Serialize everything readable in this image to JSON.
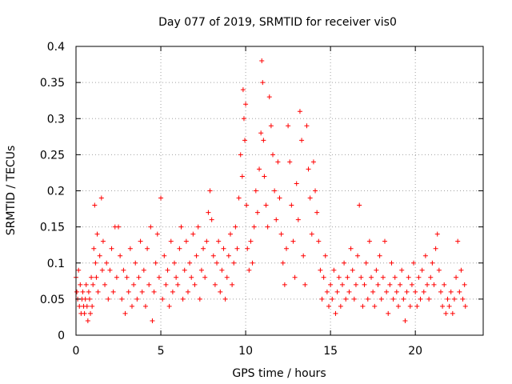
{
  "chart_data": {
    "type": "scatter",
    "title": "Day 077 of 2019, SRMTID for receiver vis0",
    "xlabel": "GPS time / hours",
    "ylabel": "SRMTID / TECUs",
    "xlim": [
      0,
      24
    ],
    "ylim": [
      0,
      0.4
    ],
    "xticks": [
      0,
      5,
      10,
      15,
      20
    ],
    "xtick_labels": [
      "0",
      "5",
      "10",
      "15",
      "20"
    ],
    "yticks": [
      0,
      0.05,
      0.1,
      0.15,
      0.2,
      0.25,
      0.3,
      0.35,
      0.4
    ],
    "ytick_labels": [
      "0",
      "0.05",
      "0.1",
      "0.15",
      "0.2",
      "0.25",
      "0.3",
      "0.35",
      "0.4"
    ],
    "grid": true,
    "marker": "plus",
    "marker_color": "#ff0000",
    "series": [
      {
        "name": "vis0",
        "points": [
          [
            0.0,
            0.08
          ],
          [
            0.05,
            0.06
          ],
          [
            0.1,
            0.05
          ],
          [
            0.15,
            0.09
          ],
          [
            0.2,
            0.04
          ],
          [
            0.25,
            0.07
          ],
          [
            0.3,
            0.03
          ],
          [
            0.35,
            0.05
          ],
          [
            0.4,
            0.06
          ],
          [
            0.45,
            0.04
          ],
          [
            0.5,
            0.03
          ],
          [
            0.55,
            0.05
          ],
          [
            0.6,
            0.07
          ],
          [
            0.65,
            0.04
          ],
          [
            0.7,
            0.02
          ],
          [
            0.75,
            0.06
          ],
          [
            0.8,
            0.05
          ],
          [
            0.85,
            0.03
          ],
          [
            0.9,
            0.08
          ],
          [
            0.95,
            0.04
          ],
          [
            1.0,
            0.07
          ],
          [
            1.05,
            0.12
          ],
          [
            1.1,
            0.18
          ],
          [
            1.15,
            0.1
          ],
          [
            1.2,
            0.08
          ],
          [
            1.25,
            0.14
          ],
          [
            1.3,
            0.06
          ],
          [
            1.4,
            0.11
          ],
          [
            1.5,
            0.19
          ],
          [
            1.55,
            0.09
          ],
          [
            1.6,
            0.13
          ],
          [
            1.7,
            0.07
          ],
          [
            1.8,
            0.1
          ],
          [
            1.9,
            0.05
          ],
          [
            2.0,
            0.09
          ],
          [
            2.1,
            0.12
          ],
          [
            2.2,
            0.06
          ],
          [
            2.3,
            0.15
          ],
          [
            2.4,
            0.08
          ],
          [
            2.5,
            0.15
          ],
          [
            2.6,
            0.11
          ],
          [
            2.7,
            0.05
          ],
          [
            2.8,
            0.09
          ],
          [
            2.9,
            0.03
          ],
          [
            3.0,
            0.08
          ],
          [
            3.1,
            0.06
          ],
          [
            3.2,
            0.12
          ],
          [
            3.3,
            0.04
          ],
          [
            3.4,
            0.07
          ],
          [
            3.5,
            0.1
          ],
          [
            3.6,
            0.05
          ],
          [
            3.7,
            0.08
          ],
          [
            3.8,
            0.13
          ],
          [
            3.9,
            0.06
          ],
          [
            4.0,
            0.09
          ],
          [
            4.1,
            0.04
          ],
          [
            4.2,
            0.12
          ],
          [
            4.3,
            0.07
          ],
          [
            4.4,
            0.15
          ],
          [
            4.5,
            0.02
          ],
          [
            4.6,
            0.06
          ],
          [
            4.7,
            0.1
          ],
          [
            4.8,
            0.14
          ],
          [
            4.9,
            0.08
          ],
          [
            5.0,
            0.19
          ],
          [
            5.1,
            0.05
          ],
          [
            5.2,
            0.11
          ],
          [
            5.3,
            0.07
          ],
          [
            5.4,
            0.09
          ],
          [
            5.5,
            0.04
          ],
          [
            5.6,
            0.13
          ],
          [
            5.7,
            0.06
          ],
          [
            5.8,
            0.1
          ],
          [
            5.9,
            0.08
          ],
          [
            6.0,
            0.07
          ],
          [
            6.1,
            0.12
          ],
          [
            6.2,
            0.15
          ],
          [
            6.3,
            0.05
          ],
          [
            6.4,
            0.09
          ],
          [
            6.5,
            0.13
          ],
          [
            6.6,
            0.06
          ],
          [
            6.7,
            0.1
          ],
          [
            6.8,
            0.08
          ],
          [
            6.9,
            0.14
          ],
          [
            7.0,
            0.07
          ],
          [
            7.1,
            0.11
          ],
          [
            7.2,
            0.15
          ],
          [
            7.3,
            0.05
          ],
          [
            7.4,
            0.09
          ],
          [
            7.5,
            0.12
          ],
          [
            7.6,
            0.08
          ],
          [
            7.7,
            0.13
          ],
          [
            7.8,
            0.17
          ],
          [
            7.9,
            0.2
          ],
          [
            8.0,
            0.16
          ],
          [
            8.1,
            0.11
          ],
          [
            8.2,
            0.07
          ],
          [
            8.3,
            0.1
          ],
          [
            8.4,
            0.13
          ],
          [
            8.5,
            0.06
          ],
          [
            8.6,
            0.09
          ],
          [
            8.7,
            0.12
          ],
          [
            8.8,
            0.05
          ],
          [
            8.9,
            0.08
          ],
          [
            9.0,
            0.11
          ],
          [
            9.1,
            0.14
          ],
          [
            9.2,
            0.07
          ],
          [
            9.3,
            0.1
          ],
          [
            9.4,
            0.15
          ],
          [
            9.5,
            0.12
          ],
          [
            9.6,
            0.19
          ],
          [
            9.7,
            0.25
          ],
          [
            9.8,
            0.22
          ],
          [
            9.85,
            0.34
          ],
          [
            9.9,
            0.3
          ],
          [
            9.95,
            0.27
          ],
          [
            10.0,
            0.32
          ],
          [
            10.05,
            0.18
          ],
          [
            10.1,
            0.12
          ],
          [
            10.2,
            0.09
          ],
          [
            10.3,
            0.13
          ],
          [
            10.4,
            0.1
          ],
          [
            10.5,
            0.15
          ],
          [
            10.6,
            0.2
          ],
          [
            10.7,
            0.17
          ],
          [
            10.8,
            0.23
          ],
          [
            10.9,
            0.28
          ],
          [
            10.95,
            0.38
          ],
          [
            11.0,
            0.35
          ],
          [
            11.05,
            0.27
          ],
          [
            11.1,
            0.22
          ],
          [
            11.2,
            0.18
          ],
          [
            11.3,
            0.15
          ],
          [
            11.4,
            0.33
          ],
          [
            11.5,
            0.29
          ],
          [
            11.6,
            0.25
          ],
          [
            11.7,
            0.2
          ],
          [
            11.8,
            0.16
          ],
          [
            11.9,
            0.24
          ],
          [
            12.0,
            0.19
          ],
          [
            12.1,
            0.14
          ],
          [
            12.2,
            0.1
          ],
          [
            12.3,
            0.07
          ],
          [
            12.4,
            0.12
          ],
          [
            12.5,
            0.29
          ],
          [
            12.6,
            0.24
          ],
          [
            12.7,
            0.18
          ],
          [
            12.8,
            0.13
          ],
          [
            12.9,
            0.08
          ],
          [
            13.0,
            0.21
          ],
          [
            13.1,
            0.16
          ],
          [
            13.2,
            0.31
          ],
          [
            13.3,
            0.27
          ],
          [
            13.4,
            0.11
          ],
          [
            13.5,
            0.07
          ],
          [
            13.6,
            0.29
          ],
          [
            13.7,
            0.23
          ],
          [
            13.8,
            0.19
          ],
          [
            13.9,
            0.14
          ],
          [
            14.0,
            0.24
          ],
          [
            14.1,
            0.2
          ],
          [
            14.2,
            0.17
          ],
          [
            14.3,
            0.13
          ],
          [
            14.4,
            0.09
          ],
          [
            14.5,
            0.05
          ],
          [
            14.6,
            0.08
          ],
          [
            14.7,
            0.11
          ],
          [
            14.8,
            0.06
          ],
          [
            14.9,
            0.04
          ],
          [
            15.0,
            0.07
          ],
          [
            15.1,
            0.05
          ],
          [
            15.2,
            0.09
          ],
          [
            15.3,
            0.03
          ],
          [
            15.4,
            0.06
          ],
          [
            15.5,
            0.08
          ],
          [
            15.6,
            0.04
          ],
          [
            15.7,
            0.07
          ],
          [
            15.8,
            0.1
          ],
          [
            15.9,
            0.05
          ],
          [
            16.0,
            0.08
          ],
          [
            16.1,
            0.06
          ],
          [
            16.2,
            0.12
          ],
          [
            16.3,
            0.09
          ],
          [
            16.4,
            0.05
          ],
          [
            16.5,
            0.07
          ],
          [
            16.6,
            0.11
          ],
          [
            16.7,
            0.18
          ],
          [
            16.8,
            0.08
          ],
          [
            16.9,
            0.04
          ],
          [
            17.0,
            0.07
          ],
          [
            17.1,
            0.1
          ],
          [
            17.2,
            0.05
          ],
          [
            17.3,
            0.13
          ],
          [
            17.4,
            0.08
          ],
          [
            17.5,
            0.06
          ],
          [
            17.6,
            0.04
          ],
          [
            17.7,
            0.09
          ],
          [
            17.8,
            0.07
          ],
          [
            17.9,
            0.11
          ],
          [
            18.0,
            0.05
          ],
          [
            18.1,
            0.08
          ],
          [
            18.2,
            0.13
          ],
          [
            18.3,
            0.06
          ],
          [
            18.4,
            0.03
          ],
          [
            18.5,
            0.07
          ],
          [
            18.6,
            0.1
          ],
          [
            18.7,
            0.05
          ],
          [
            18.8,
            0.08
          ],
          [
            18.9,
            0.06
          ],
          [
            19.0,
            0.04
          ],
          [
            19.1,
            0.07
          ],
          [
            19.2,
            0.09
          ],
          [
            19.3,
            0.05
          ],
          [
            19.4,
            0.02
          ],
          [
            19.5,
            0.06
          ],
          [
            19.6,
            0.08
          ],
          [
            19.7,
            0.04
          ],
          [
            19.8,
            0.07
          ],
          [
            19.9,
            0.1
          ],
          [
            20.0,
            0.06
          ],
          [
            20.1,
            0.04
          ],
          [
            20.2,
            0.08
          ],
          [
            20.3,
            0.05
          ],
          [
            20.4,
            0.09
          ],
          [
            20.5,
            0.06
          ],
          [
            20.6,
            0.11
          ],
          [
            20.7,
            0.07
          ],
          [
            20.8,
            0.05
          ],
          [
            20.9,
            0.08
          ],
          [
            21.0,
            0.1
          ],
          [
            21.1,
            0.07
          ],
          [
            21.2,
            0.12
          ],
          [
            21.3,
            0.14
          ],
          [
            21.4,
            0.09
          ],
          [
            21.5,
            0.06
          ],
          [
            21.6,
            0.04
          ],
          [
            21.7,
            0.07
          ],
          [
            21.8,
            0.03
          ],
          [
            21.9,
            0.05
          ],
          [
            22.0,
            0.04
          ],
          [
            22.1,
            0.06
          ],
          [
            22.2,
            0.03
          ],
          [
            22.3,
            0.05
          ],
          [
            22.4,
            0.08
          ],
          [
            22.5,
            0.13
          ],
          [
            22.6,
            0.06
          ],
          [
            22.7,
            0.09
          ],
          [
            22.8,
            0.05
          ],
          [
            22.9,
            0.07
          ],
          [
            22.95,
            0.04
          ]
        ]
      }
    ]
  }
}
